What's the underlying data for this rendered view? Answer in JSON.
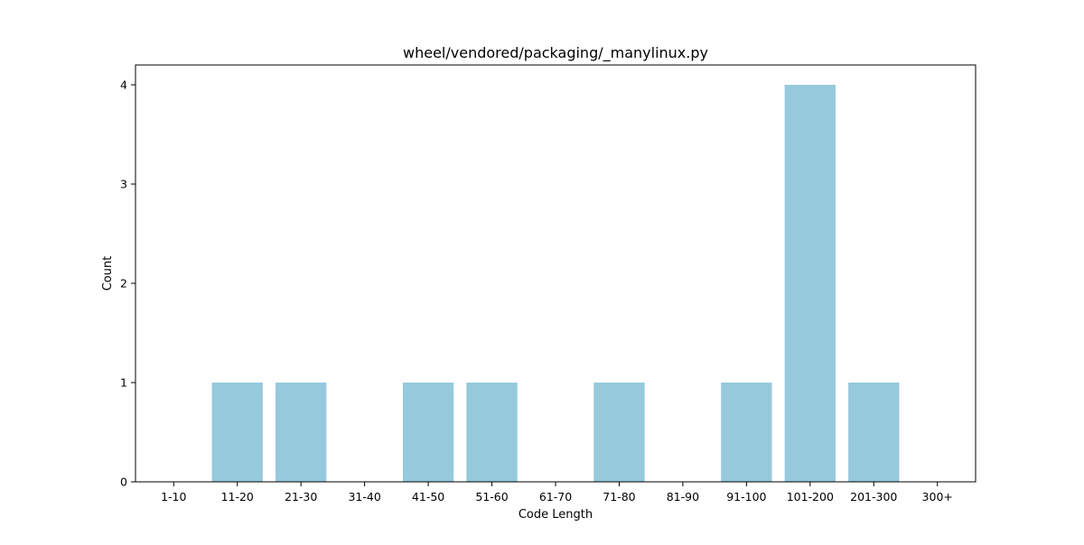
{
  "chart_data": {
    "type": "bar",
    "title": "wheel/vendored/packaging/_manylinux.py",
    "xlabel": "Code Length",
    "ylabel": "Count",
    "categories": [
      "1-10",
      "11-20",
      "21-30",
      "31-40",
      "41-50",
      "51-60",
      "61-70",
      "71-80",
      "81-90",
      "91-100",
      "101-200",
      "201-300",
      "300+"
    ],
    "values": [
      0,
      1,
      1,
      0,
      1,
      1,
      0,
      1,
      0,
      1,
      4,
      1,
      0
    ],
    "ylim": [
      0,
      4.2
    ],
    "yticks": [
      0,
      1,
      2,
      3,
      4
    ],
    "bar_color": "#96c9dc",
    "grid": false,
    "legend": "none"
  }
}
